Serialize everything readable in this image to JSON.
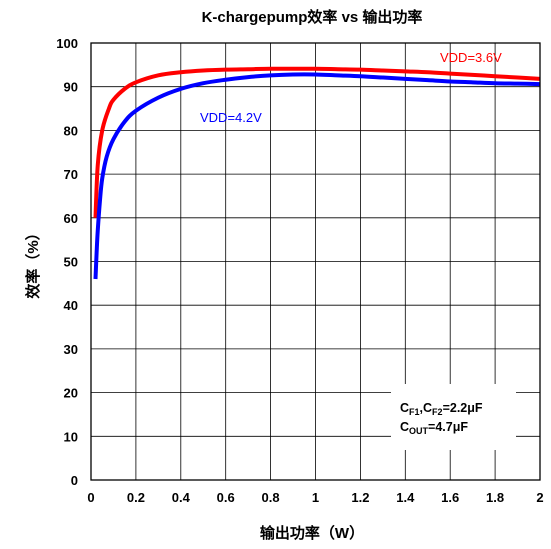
{
  "chart_data": {
    "type": "line",
    "title": "K-chargepump效率 vs 输出功率",
    "xlabel": "输出功率（W）",
    "ylabel": "效率（%）",
    "xlim": [
      0,
      2
    ],
    "ylim": [
      0,
      100
    ],
    "x_ticks": [
      "0",
      "0.2",
      "0.4",
      "0.6",
      "0.8",
      "1",
      "1.2",
      "1.4",
      "1.6",
      "1.8",
      "2"
    ],
    "y_ticks": [
      "0",
      "10",
      "20",
      "30",
      "40",
      "50",
      "60",
      "70",
      "80",
      "90",
      "100"
    ],
    "grid": true,
    "series": [
      {
        "name": "VDD=3.6V",
        "color": "#ff0000",
        "x": [
          0.02,
          0.03,
          0.05,
          0.08,
          0.1,
          0.15,
          0.2,
          0.3,
          0.4,
          0.5,
          0.6,
          0.7,
          0.8,
          0.9,
          1.0,
          1.1,
          1.2,
          1.3,
          1.4,
          1.5,
          1.6,
          1.7,
          1.8,
          1.9,
          2.0
        ],
        "y": [
          60,
          72,
          80,
          85,
          87,
          89.5,
          91,
          92.6,
          93.3,
          93.7,
          93.9,
          94.0,
          94.1,
          94.1,
          94.1,
          94.0,
          93.9,
          93.7,
          93.5,
          93.3,
          93.0,
          92.7,
          92.4,
          92.1,
          91.8
        ]
      },
      {
        "name": "VDD=4.2V",
        "color": "#0000ff",
        "x": [
          0.02,
          0.025,
          0.03,
          0.04,
          0.05,
          0.07,
          0.1,
          0.15,
          0.2,
          0.3,
          0.4,
          0.5,
          0.6,
          0.7,
          0.8,
          0.9,
          1.0,
          1.1,
          1.2,
          1.3,
          1.4,
          1.5,
          1.6,
          1.7,
          1.8,
          1.9,
          2.0
        ],
        "y": [
          46,
          52,
          57,
          64,
          69,
          74,
          78,
          82,
          84.5,
          87.5,
          89.5,
          90.8,
          91.6,
          92.2,
          92.6,
          92.8,
          92.8,
          92.6,
          92.4,
          92.1,
          91.8,
          91.5,
          91.2,
          91.0,
          90.8,
          90.7,
          90.6
        ]
      }
    ],
    "annotation_lines": [
      "C",
      "F1",
      ",C",
      "F2",
      "=2.2μF",
      "C",
      "OUT",
      "=4.7μF"
    ]
  }
}
